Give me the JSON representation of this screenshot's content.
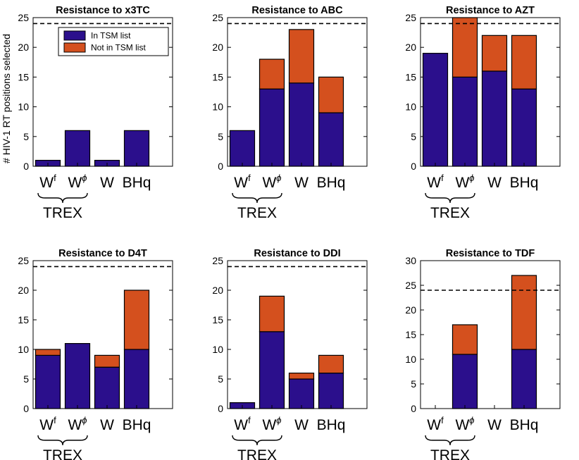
{
  "figure": {
    "ylabel": "# HIV-1 RT positions selected",
    "group_label": "TREX",
    "categories": [
      {
        "base": "W",
        "sup": "f"
      },
      {
        "base": "W",
        "sup": "ϕ"
      },
      {
        "base": "W",
        "sup": ""
      },
      {
        "base": "BHq",
        "sup": ""
      }
    ],
    "legend": [
      "In TSM list",
      "Not in TSM list"
    ],
    "colors": {
      "in_tsm": "#2b0f8c",
      "not_in_tsm": "#d4501e"
    },
    "threshold_label": ""
  },
  "chart_data": [
    {
      "type": "bar",
      "title": "Resistance to x3TC",
      "ylim": [
        0,
        25
      ],
      "yticks": [
        0,
        5,
        10,
        15,
        20,
        25
      ],
      "threshold": 24,
      "series": [
        {
          "name": "In TSM list",
          "values": [
            1,
            6,
            1,
            6
          ]
        },
        {
          "name": "Not in TSM list",
          "values": [
            0,
            0,
            0,
            0
          ]
        }
      ],
      "legend": true
    },
    {
      "type": "bar",
      "title": "Resistance to ABC",
      "ylim": [
        0,
        25
      ],
      "yticks": [
        0,
        5,
        10,
        15,
        20,
        25
      ],
      "threshold": 24,
      "series": [
        {
          "name": "In TSM list",
          "values": [
            6,
            13,
            14,
            9
          ]
        },
        {
          "name": "Not in TSM list",
          "values": [
            0,
            5,
            9,
            6
          ]
        }
      ],
      "legend": false
    },
    {
      "type": "bar",
      "title": "Resistance to AZT",
      "ylim": [
        0,
        25
      ],
      "yticks": [
        0,
        5,
        10,
        15,
        20,
        25
      ],
      "threshold": 24,
      "series": [
        {
          "name": "In TSM list",
          "values": [
            19,
            15,
            16,
            13
          ]
        },
        {
          "name": "Not in TSM list",
          "values": [
            0,
            10,
            6,
            9
          ]
        }
      ],
      "legend": false
    },
    {
      "type": "bar",
      "title": "Resistance to D4T",
      "ylim": [
        0,
        25
      ],
      "yticks": [
        0,
        5,
        10,
        15,
        20,
        25
      ],
      "threshold": 24,
      "series": [
        {
          "name": "In TSM list",
          "values": [
            9,
            11,
            7,
            10
          ]
        },
        {
          "name": "Not in TSM list",
          "values": [
            1,
            0,
            2,
            10
          ]
        }
      ],
      "legend": false
    },
    {
      "type": "bar",
      "title": "Resistance to DDI",
      "ylim": [
        0,
        25
      ],
      "yticks": [
        0,
        5,
        10,
        15,
        20,
        25
      ],
      "threshold": 24,
      "series": [
        {
          "name": "In TSM list",
          "values": [
            1,
            13,
            5,
            6
          ]
        },
        {
          "name": "Not in TSM list",
          "values": [
            0,
            6,
            1,
            3
          ]
        }
      ],
      "legend": false
    },
    {
      "type": "bar",
      "title": "Resistance to TDF",
      "ylim": [
        0,
        30
      ],
      "yticks": [
        0,
        5,
        10,
        15,
        20,
        25,
        30
      ],
      "threshold": 24,
      "series": [
        {
          "name": "In TSM list",
          "values": [
            0,
            11,
            0,
            12
          ]
        },
        {
          "name": "Not in TSM list",
          "values": [
            0,
            6,
            0,
            15
          ]
        }
      ],
      "legend": false
    }
  ]
}
